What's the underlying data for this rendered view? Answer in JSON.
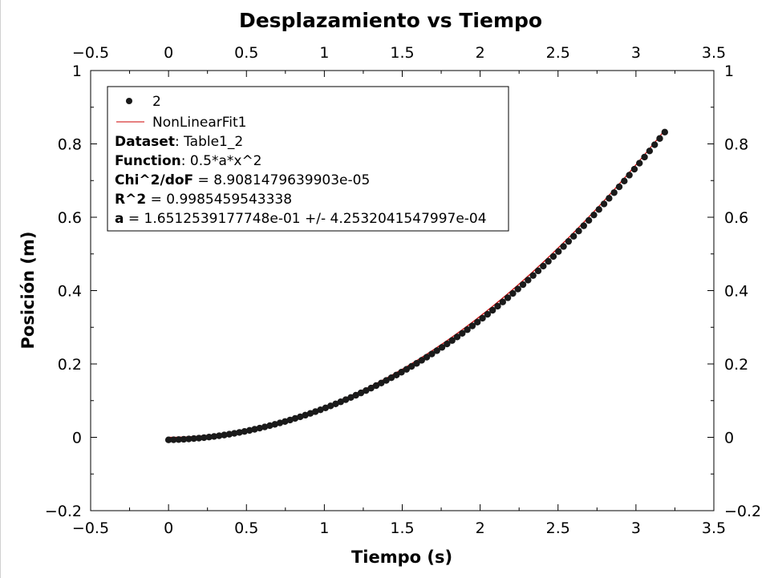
{
  "chart_data": {
    "type": "scatter",
    "title": "Desplazamiento vs Tiempo",
    "xlabel": "Tiempo (s)",
    "ylabel": "Posición (m)",
    "xlim": [
      -0.5,
      3.5
    ],
    "ylim": [
      -0.2,
      1.0
    ],
    "x_ticks": [
      -0.5,
      0,
      0.5,
      1,
      1.5,
      2,
      2.5,
      3,
      3.5
    ],
    "y_ticks": [
      -0.2,
      0,
      0.2,
      0.4,
      0.6,
      0.8,
      1
    ],
    "x_tick_labels": [
      "−0.5",
      "0",
      "0.5",
      "1",
      "1.5",
      "2",
      "2.5",
      "3",
      "3.5"
    ],
    "y_tick_labels": [
      "−0.2",
      "0",
      "0.2",
      "0.4",
      "0.6",
      "0.8",
      "1"
    ],
    "mirror_axes": true,
    "grid": false,
    "legend_position": "top-left",
    "series": [
      {
        "name": "2",
        "kind": "scatter",
        "marker_color": "#1a1a1a",
        "x_start": 0.0,
        "x_step": 0.0325,
        "count": 99,
        "y_model": "0.5*a*x^2 - 0.007 + 0.004*sin(2.094*x)",
        "a": 0.16512539177748
      },
      {
        "name": "NonLinearFit1",
        "kind": "line",
        "line_color": "#cc0000",
        "function": "0.5*a*x^2",
        "a": 0.16512539177748,
        "x_range": [
          0.0,
          3.17
        ]
      }
    ],
    "fit_info": {
      "dataset_label": "Dataset",
      "dataset_value": ": Table1_2",
      "function_label": "Function",
      "function_value": ": 0.5*a*x^2",
      "chi_label": "Chi^2/doF",
      "chi_value": " = 8.9081479639903e-05",
      "r2_label": "R^2",
      "r2_value": " = 0.9985459543338",
      "a_label": "a",
      "a_value": " = 1.6512539177748e-01 +/- 4.2532041547997e-04"
    }
  }
}
